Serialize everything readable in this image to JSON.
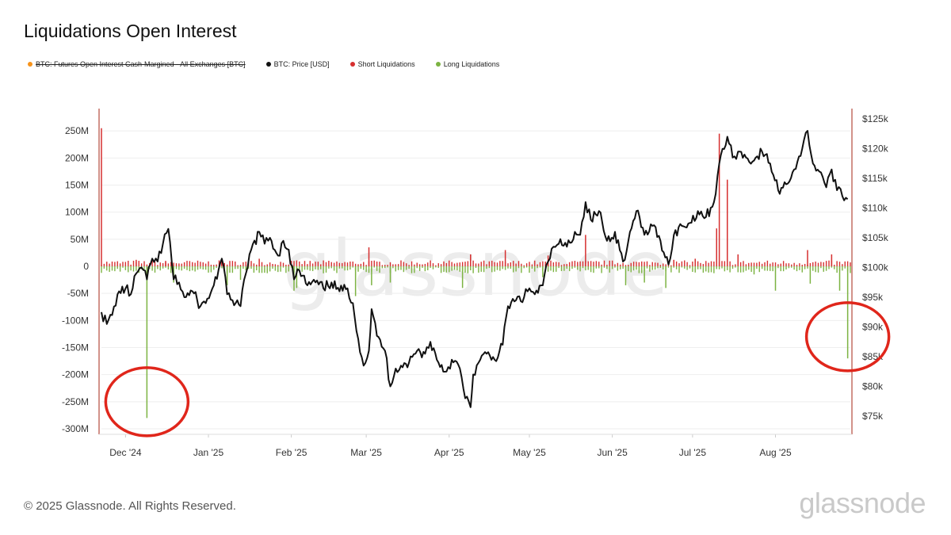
{
  "title": "Liquidations Open Interest",
  "legend": [
    {
      "label": "BTC: Futures Open Interest Cash-Margined - All Exchanges [BTC]",
      "color": "#f7931a",
      "struck": true
    },
    {
      "label": "BTC: Price [USD]",
      "color": "#111111",
      "struck": false
    },
    {
      "label": "Short Liquidations",
      "color": "#d62f2f",
      "struck": false
    },
    {
      "label": "Long Liquidations",
      "color": "#7cb342",
      "struck": false
    }
  ],
  "footer": "© 2025 Glassnode. All Rights Reserved.",
  "brand": "glassnode",
  "watermark": "glassnode",
  "chart_data": {
    "type": "line",
    "title": "Liquidations Open Interest",
    "x_range": [
      "2024-11-22",
      "2025-08-29"
    ],
    "x_ticks": [
      {
        "label": "Dec '24",
        "date": "2024-12-01"
      },
      {
        "label": "Jan '25",
        "date": "2025-01-01"
      },
      {
        "label": "Feb '25",
        "date": "2025-02-01"
      },
      {
        "label": "Mar '25",
        "date": "2025-03-01"
      },
      {
        "label": "Apr '25",
        "date": "2025-04-01"
      },
      {
        "label": "May '25",
        "date": "2025-05-01"
      },
      {
        "label": "Jun '25",
        "date": "2025-06-01"
      },
      {
        "label": "Jul '25",
        "date": "2025-07-01"
      },
      {
        "label": "Aug '25",
        "date": "2025-08-01"
      }
    ],
    "y_left": {
      "range": [
        -300,
        250
      ],
      "ticks": [
        250,
        200,
        150,
        100,
        50,
        0,
        -50,
        -100,
        -150,
        -200,
        -250,
        -300
      ],
      "tick_labels": [
        "250M",
        "200M",
        "150M",
        "100M",
        "50M",
        "0",
        "-50M",
        "-100M",
        "-150M",
        "-200M",
        "-250M",
        "-300M"
      ]
    },
    "y_right": {
      "range": [
        72000,
        127000
      ],
      "ticks": [
        125000,
        120000,
        115000,
        110000,
        105000,
        100000,
        95000,
        90000,
        85000,
        80000,
        75000
      ],
      "tick_labels": [
        "$125k",
        "$120k",
        "$115k",
        "$110k",
        "$105k",
        "$100k",
        "$95k",
        "$90k",
        "$85k",
        "$80k",
        "$75k"
      ]
    },
    "grid": true,
    "legend_position": "top-left",
    "price_series": {
      "name": "BTC: Price [USD]",
      "color": "#111111",
      "points": [
        [
          "2024-11-22",
          92500
        ],
        [
          "2024-11-24",
          90500
        ],
        [
          "2024-11-26",
          92000
        ],
        [
          "2024-11-28",
          95500
        ],
        [
          "2024-12-01",
          96500
        ],
        [
          "2024-12-03",
          95500
        ],
        [
          "2024-12-05",
          99000
        ],
        [
          "2024-12-07",
          100000
        ],
        [
          "2024-12-09",
          98000
        ],
        [
          "2024-12-11",
          101500
        ],
        [
          "2024-12-13",
          101000
        ],
        [
          "2024-12-15",
          104000
        ],
        [
          "2024-12-17",
          106500
        ],
        [
          "2024-12-19",
          98000
        ],
        [
          "2024-12-21",
          97500
        ],
        [
          "2024-12-23",
          95000
        ],
        [
          "2024-12-26",
          96000
        ],
        [
          "2024-12-29",
          93500
        ],
        [
          "2024-12-31",
          94000
        ],
        [
          "2025-01-03",
          97000
        ],
        [
          "2025-01-06",
          101500
        ],
        [
          "2025-01-08",
          95500
        ],
        [
          "2025-01-10",
          94500
        ],
        [
          "2025-01-13",
          93500
        ],
        [
          "2025-01-15",
          99000
        ],
        [
          "2025-01-17",
          103000
        ],
        [
          "2025-01-20",
          106000
        ],
        [
          "2025-01-22",
          104000
        ],
        [
          "2025-01-24",
          105000
        ],
        [
          "2025-01-27",
          102000
        ],
        [
          "2025-01-29",
          104500
        ],
        [
          "2025-01-31",
          103000
        ],
        [
          "2025-02-02",
          98000
        ],
        [
          "2025-02-04",
          99500
        ],
        [
          "2025-02-07",
          97000
        ],
        [
          "2025-02-10",
          97500
        ],
        [
          "2025-02-13",
          96500
        ],
        [
          "2025-02-16",
          97500
        ],
        [
          "2025-02-19",
          96000
        ],
        [
          "2025-02-22",
          96500
        ],
        [
          "2025-02-24",
          94000
        ],
        [
          "2025-02-26",
          88000
        ],
        [
          "2025-02-28",
          83500
        ],
        [
          "2025-03-02",
          86000
        ],
        [
          "2025-03-03",
          93000
        ],
        [
          "2025-03-05",
          88500
        ],
        [
          "2025-03-08",
          86000
        ],
        [
          "2025-03-10",
          80000
        ],
        [
          "2025-03-12",
          83000
        ],
        [
          "2025-03-14",
          83500
        ],
        [
          "2025-03-17",
          84000
        ],
        [
          "2025-03-20",
          86000
        ],
        [
          "2025-03-23",
          85500
        ],
        [
          "2025-03-25",
          87500
        ],
        [
          "2025-03-28",
          84000
        ],
        [
          "2025-03-31",
          82500
        ],
        [
          "2025-04-02",
          84500
        ],
        [
          "2025-04-05",
          83000
        ],
        [
          "2025-04-07",
          78000
        ],
        [
          "2025-04-09",
          76500
        ],
        [
          "2025-04-10",
          82000
        ],
        [
          "2025-04-12",
          84000
        ],
        [
          "2025-04-15",
          85500
        ],
        [
          "2025-04-18",
          84500
        ],
        [
          "2025-04-21",
          87000
        ],
        [
          "2025-04-23",
          93500
        ],
        [
          "2025-04-26",
          94500
        ],
        [
          "2025-04-29",
          95000
        ],
        [
          "2025-05-01",
          96500
        ],
        [
          "2025-05-03",
          95500
        ],
        [
          "2025-05-06",
          97000
        ],
        [
          "2025-05-08",
          101000
        ],
        [
          "2025-05-10",
          103500
        ],
        [
          "2025-05-12",
          104000
        ],
        [
          "2025-05-15",
          103500
        ],
        [
          "2025-05-18",
          106000
        ],
        [
          "2025-05-20",
          105500
        ],
        [
          "2025-05-22",
          111000
        ],
        [
          "2025-05-24",
          108000
        ],
        [
          "2025-05-27",
          109500
        ],
        [
          "2025-05-30",
          104500
        ],
        [
          "2025-06-02",
          106000
        ],
        [
          "2025-06-05",
          101000
        ],
        [
          "2025-06-07",
          104500
        ],
        [
          "2025-06-10",
          109500
        ],
        [
          "2025-06-13",
          105500
        ],
        [
          "2025-06-16",
          107000
        ],
        [
          "2025-06-19",
          104500
        ],
        [
          "2025-06-22",
          100500
        ],
        [
          "2025-06-24",
          105500
        ],
        [
          "2025-06-27",
          107000
        ],
        [
          "2025-06-30",
          107500
        ],
        [
          "2025-07-03",
          109500
        ],
        [
          "2025-07-06",
          108500
        ],
        [
          "2025-07-09",
          111000
        ],
        [
          "2025-07-11",
          117500
        ],
        [
          "2025-07-14",
          122000
        ],
        [
          "2025-07-16",
          118500
        ],
        [
          "2025-07-18",
          119500
        ],
        [
          "2025-07-21",
          118500
        ],
        [
          "2025-07-24",
          118000
        ],
        [
          "2025-07-27",
          119500
        ],
        [
          "2025-07-30",
          117500
        ],
        [
          "2025-08-02",
          113000
        ],
        [
          "2025-08-05",
          114000
        ],
        [
          "2025-08-08",
          116500
        ],
        [
          "2025-08-11",
          120000
        ],
        [
          "2025-08-13",
          123000
        ],
        [
          "2025-08-15",
          117500
        ],
        [
          "2025-08-18",
          116000
        ],
        [
          "2025-08-20",
          113500
        ],
        [
          "2025-08-22",
          116500
        ],
        [
          "2025-08-24",
          113000
        ],
        [
          "2025-08-26",
          112000
        ],
        [
          "2025-08-28",
          111500
        ]
      ]
    },
    "short_liquidations": {
      "name": "Short Liquidations",
      "color": "#d62f2f",
      "points": [
        [
          "2024-11-22",
          255
        ],
        [
          "2024-12-05",
          12
        ],
        [
          "2024-12-16",
          8
        ],
        [
          "2025-01-06",
          10
        ],
        [
          "2025-01-20",
          14
        ],
        [
          "2025-03-02",
          35
        ],
        [
          "2025-04-09",
          22
        ],
        [
          "2025-04-22",
          30
        ],
        [
          "2025-05-08",
          20
        ],
        [
          "2025-05-22",
          58
        ],
        [
          "2025-06-24",
          12
        ],
        [
          "2025-07-02",
          14
        ],
        [
          "2025-07-10",
          70
        ],
        [
          "2025-07-11",
          245
        ],
        [
          "2025-07-14",
          160
        ],
        [
          "2025-07-18",
          22
        ],
        [
          "2025-08-13",
          30
        ],
        [
          "2025-08-22",
          22
        ]
      ]
    },
    "long_liquidations": {
      "name": "Long Liquidations",
      "color": "#7cb342",
      "points": [
        [
          "2024-12-09",
          -280
        ],
        [
          "2024-12-19",
          -30
        ],
        [
          "2025-01-08",
          -35
        ],
        [
          "2025-01-13",
          -25
        ],
        [
          "2025-02-02",
          -45
        ],
        [
          "2025-02-03",
          -40
        ],
        [
          "2025-02-25",
          -55
        ],
        [
          "2025-03-03",
          -35
        ],
        [
          "2025-03-10",
          -30
        ],
        [
          "2025-04-06",
          -40
        ],
        [
          "2025-05-06",
          -20
        ],
        [
          "2025-06-06",
          -35
        ],
        [
          "2025-06-13",
          -30
        ],
        [
          "2025-06-21",
          -40
        ],
        [
          "2025-07-24",
          -15
        ],
        [
          "2025-08-01",
          -45
        ],
        [
          "2025-08-14",
          -32
        ],
        [
          "2025-08-25",
          -45
        ],
        [
          "2025-08-28",
          -170
        ]
      ]
    },
    "annotations": [
      {
        "type": "circle",
        "color": "#e0261b",
        "date": "2024-12-09",
        "y": -250
      },
      {
        "type": "circle",
        "color": "#e0261b",
        "date": "2025-08-28",
        "y": -130
      }
    ]
  }
}
